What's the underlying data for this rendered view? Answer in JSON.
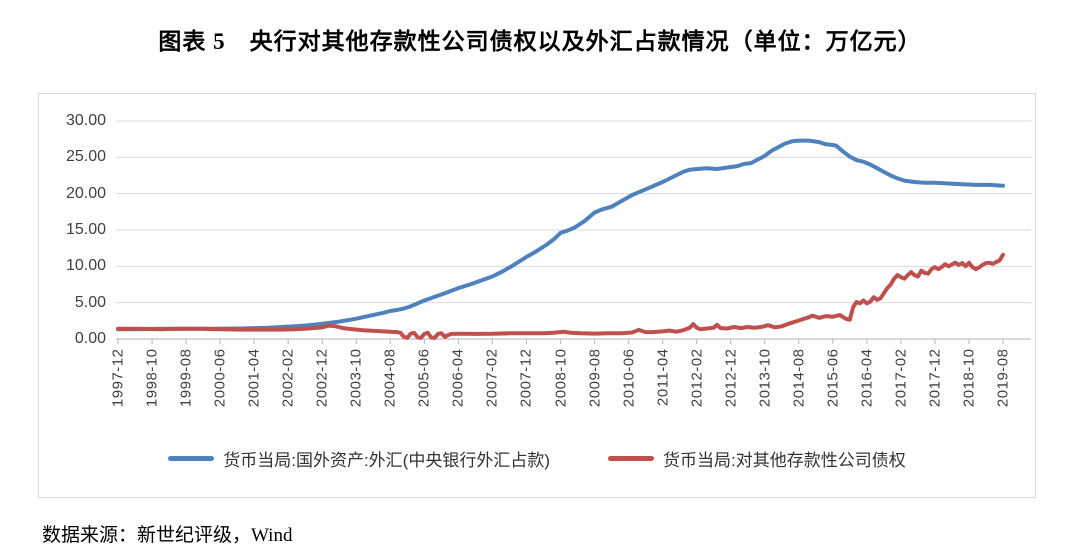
{
  "title": "图表 5　央行对其他存款性公司债权以及外汇占款情况（单位：万亿元）",
  "source_note": "数据来源：新世纪评级，Wind",
  "chart_data": {
    "type": "line",
    "title": "央行对其他存款性公司债权以及外汇占款情况",
    "unit": "万亿元",
    "grid": true,
    "legend_position": "bottom",
    "ylim": [
      0,
      30
    ],
    "y_grid_interval": 5,
    "y_ticks": [
      "30.00",
      "25.00",
      "20.00",
      "15.00",
      "10.00",
      "5.00",
      "0.00"
    ],
    "x_months_per_tick": 10,
    "x_total_months": 260,
    "x_tick_labels": [
      "1997-12",
      "1998-10",
      "1999-08",
      "2000-06",
      "2001-04",
      "2002-02",
      "2002-12",
      "2003-10",
      "2004-08",
      "2005-06",
      "2006-04",
      "2007-02",
      "2007-12",
      "2008-10",
      "2009-08",
      "2010-06",
      "2011-04",
      "2012-02",
      "2012-12",
      "2013-10",
      "2014-08",
      "2015-06",
      "2016-04",
      "2017-02",
      "2017-12",
      "2018-10",
      "2019-08"
    ],
    "series": [
      {
        "name": "货币当局:国外资产:外汇(中央银行外汇占款)",
        "color": "#4F81BD",
        "points": [
          [
            0,
            1.35
          ],
          [
            6,
            1.35
          ],
          [
            12,
            1.4
          ],
          [
            20,
            1.4
          ],
          [
            28,
            1.4
          ],
          [
            36,
            1.45
          ],
          [
            44,
            1.55
          ],
          [
            50,
            1.7
          ],
          [
            55,
            1.85
          ],
          [
            60,
            2.1
          ],
          [
            65,
            2.4
          ],
          [
            70,
            2.8
          ],
          [
            74,
            3.2
          ],
          [
            78,
            3.6
          ],
          [
            80,
            3.85
          ],
          [
            82,
            4.0
          ],
          [
            84,
            4.2
          ],
          [
            86,
            4.5
          ],
          [
            88,
            4.9
          ],
          [
            90,
            5.3
          ],
          [
            93,
            5.8
          ],
          [
            96,
            6.3
          ],
          [
            100,
            7.0
          ],
          [
            104,
            7.6
          ],
          [
            107,
            8.1
          ],
          [
            110,
            8.6
          ],
          [
            113,
            9.3
          ],
          [
            116,
            10.1
          ],
          [
            118,
            10.7
          ],
          [
            120,
            11.3
          ],
          [
            123,
            12.1
          ],
          [
            126,
            13.0
          ],
          [
            128,
            13.7
          ],
          [
            130,
            14.6
          ],
          [
            132,
            14.9
          ],
          [
            134,
            15.3
          ],
          [
            137,
            16.2
          ],
          [
            140,
            17.4
          ],
          [
            142,
            17.8
          ],
          [
            145,
            18.2
          ],
          [
            148,
            19.0
          ],
          [
            151,
            19.8
          ],
          [
            154,
            20.4
          ],
          [
            157,
            21.0
          ],
          [
            160,
            21.6
          ],
          [
            163,
            22.3
          ],
          [
            166,
            23.0
          ],
          [
            168,
            23.3
          ],
          [
            170,
            23.4
          ],
          [
            173,
            23.5
          ],
          [
            176,
            23.4
          ],
          [
            179,
            23.6
          ],
          [
            182,
            23.8
          ],
          [
            184,
            24.1
          ],
          [
            186,
            24.2
          ],
          [
            188,
            24.7
          ],
          [
            190,
            25.2
          ],
          [
            192,
            25.9
          ],
          [
            194,
            26.4
          ],
          [
            196,
            26.9
          ],
          [
            198,
            27.2
          ],
          [
            200,
            27.3
          ],
          [
            203,
            27.3
          ],
          [
            206,
            27.1
          ],
          [
            208,
            26.8
          ],
          [
            210,
            26.7
          ],
          [
            211,
            26.6
          ],
          [
            213,
            25.8
          ],
          [
            215,
            25.1
          ],
          [
            217,
            24.6
          ],
          [
            219,
            24.4
          ],
          [
            221,
            24.0
          ],
          [
            223,
            23.5
          ],
          [
            225,
            23.0
          ],
          [
            227,
            22.5
          ],
          [
            229,
            22.1
          ],
          [
            231,
            21.8
          ],
          [
            234,
            21.6
          ],
          [
            237,
            21.5
          ],
          [
            240,
            21.5
          ],
          [
            244,
            21.4
          ],
          [
            248,
            21.3
          ],
          [
            252,
            21.2
          ],
          [
            256,
            21.2
          ],
          [
            260,
            21.1
          ]
        ]
      },
      {
        "name": "货币当局:对其他存款性公司债权",
        "color": "#C0504D",
        "points": [
          [
            0,
            1.4
          ],
          [
            6,
            1.4
          ],
          [
            12,
            1.35
          ],
          [
            18,
            1.4
          ],
          [
            24,
            1.4
          ],
          [
            30,
            1.35
          ],
          [
            36,
            1.3
          ],
          [
            42,
            1.3
          ],
          [
            48,
            1.3
          ],
          [
            52,
            1.35
          ],
          [
            56,
            1.45
          ],
          [
            60,
            1.6
          ],
          [
            62,
            1.85
          ],
          [
            64,
            1.75
          ],
          [
            66,
            1.5
          ],
          [
            69,
            1.35
          ],
          [
            72,
            1.2
          ],
          [
            76,
            1.1
          ],
          [
            80,
            1.0
          ],
          [
            82,
            0.95
          ],
          [
            83,
            0.85
          ],
          [
            84,
            0.3
          ],
          [
            85,
            0.15
          ],
          [
            86,
            0.75
          ],
          [
            87,
            0.85
          ],
          [
            88,
            0.25
          ],
          [
            89,
            0.15
          ],
          [
            90,
            0.7
          ],
          [
            91,
            0.85
          ],
          [
            92,
            0.2
          ],
          [
            93,
            0.15
          ],
          [
            94,
            0.7
          ],
          [
            95,
            0.8
          ],
          [
            96,
            0.3
          ],
          [
            97,
            0.55
          ],
          [
            98,
            0.7
          ],
          [
            101,
            0.72
          ],
          [
            105,
            0.7
          ],
          [
            110,
            0.72
          ],
          [
            115,
            0.78
          ],
          [
            120,
            0.8
          ],
          [
            125,
            0.78
          ],
          [
            128,
            0.85
          ],
          [
            131,
            1.0
          ],
          [
            133,
            0.85
          ],
          [
            136,
            0.78
          ],
          [
            140,
            0.75
          ],
          [
            144,
            0.78
          ],
          [
            148,
            0.8
          ],
          [
            151,
            0.9
          ],
          [
            153,
            1.25
          ],
          [
            155,
            0.95
          ],
          [
            157,
            0.95
          ],
          [
            160,
            1.05
          ],
          [
            162,
            1.15
          ],
          [
            164,
            1.0
          ],
          [
            166,
            1.2
          ],
          [
            168,
            1.55
          ],
          [
            169,
            2.05
          ],
          [
            170,
            1.55
          ],
          [
            171,
            1.35
          ],
          [
            173,
            1.45
          ],
          [
            175,
            1.55
          ],
          [
            176,
            1.95
          ],
          [
            177,
            1.5
          ],
          [
            179,
            1.45
          ],
          [
            181,
            1.65
          ],
          [
            183,
            1.5
          ],
          [
            185,
            1.65
          ],
          [
            187,
            1.55
          ],
          [
            189,
            1.65
          ],
          [
            191,
            1.9
          ],
          [
            193,
            1.6
          ],
          [
            195,
            1.75
          ],
          [
            197,
            2.1
          ],
          [
            199,
            2.4
          ],
          [
            201,
            2.7
          ],
          [
            203,
            3.0
          ],
          [
            204,
            3.2
          ],
          [
            206,
            2.9
          ],
          [
            208,
            3.15
          ],
          [
            210,
            3.05
          ],
          [
            212,
            3.3
          ],
          [
            214,
            2.75
          ],
          [
            215,
            2.65
          ],
          [
            216,
            4.4
          ],
          [
            217,
            5.1
          ],
          [
            218,
            4.9
          ],
          [
            219,
            5.3
          ],
          [
            220,
            4.9
          ],
          [
            221,
            5.15
          ],
          [
            222,
            5.75
          ],
          [
            223,
            5.4
          ],
          [
            224,
            5.6
          ],
          [
            225,
            6.3
          ],
          [
            226,
            7.0
          ],
          [
            227,
            7.5
          ],
          [
            228,
            8.3
          ],
          [
            229,
            8.8
          ],
          [
            230,
            8.5
          ],
          [
            231,
            8.3
          ],
          [
            232,
            8.8
          ],
          [
            233,
            9.2
          ],
          [
            234,
            8.8
          ],
          [
            235,
            8.6
          ],
          [
            236,
            9.4
          ],
          [
            237,
            9.1
          ],
          [
            238,
            9.0
          ],
          [
            239,
            9.6
          ],
          [
            240,
            9.9
          ],
          [
            241,
            9.6
          ],
          [
            242,
            9.9
          ],
          [
            243,
            10.3
          ],
          [
            244,
            10.0
          ],
          [
            245,
            10.25
          ],
          [
            246,
            10.5
          ],
          [
            247,
            10.2
          ],
          [
            248,
            10.45
          ],
          [
            249,
            10.0
          ],
          [
            250,
            10.5
          ],
          [
            251,
            9.9
          ],
          [
            252,
            9.6
          ],
          [
            253,
            9.85
          ],
          [
            254,
            10.2
          ],
          [
            255,
            10.45
          ],
          [
            256,
            10.5
          ],
          [
            257,
            10.35
          ],
          [
            258,
            10.6
          ],
          [
            259,
            10.8
          ],
          [
            260,
            11.6
          ]
        ]
      }
    ],
    "axis_colors": {
      "gridline": "#d9d9d9",
      "axis_line": "#bfbfbf",
      "tick_text": "#404040"
    }
  }
}
